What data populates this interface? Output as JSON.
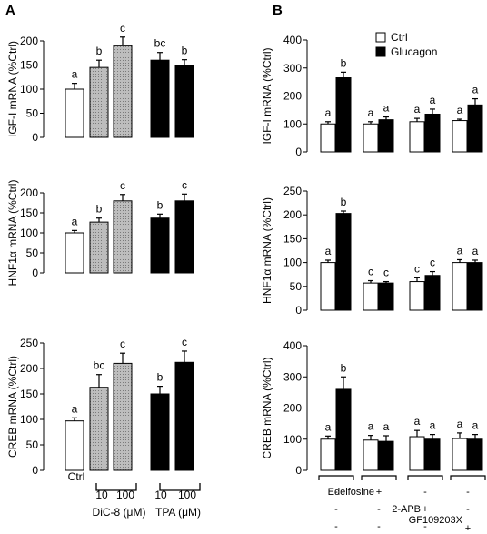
{
  "panels": {
    "A": {
      "label": "A"
    },
    "B": {
      "label": "B"
    }
  },
  "legend": {
    "items": [
      {
        "label": "Ctrl",
        "color": "#ffffff"
      },
      {
        "label": "Glucagon",
        "color": "#000000"
      }
    ],
    "placement": "top-right of panel B"
  },
  "xaxis_A": {
    "ctrl_label": "Ctrl",
    "dic8_doses": [
      "10",
      "100"
    ],
    "dic8_label": "DiC-8 (μM)",
    "tpa_doses": [
      "10",
      "100"
    ],
    "tpa_label": "TPA (μM)"
  },
  "xaxis_B": {
    "rows": [
      {
        "label": "Edelfosine",
        "signs": [
          "-",
          "+",
          "-",
          "-"
        ]
      },
      {
        "label": "2-APB",
        "signs": [
          "-",
          "-",
          "+",
          "-"
        ]
      },
      {
        "label": "GF109203X",
        "signs": [
          "-",
          "-",
          "-",
          "+"
        ]
      }
    ]
  },
  "colors": {
    "ctrl": "#ffffff",
    "dic8": "#c8c8c8",
    "black": "#000000"
  },
  "chart_data": [
    {
      "type": "bar",
      "panel": "A",
      "ylabel": "IGF-I mRNA (%Ctrl)",
      "ylim": [
        0,
        200
      ],
      "yticks": [
        0,
        50,
        100,
        150,
        200
      ],
      "categories": [
        "Ctrl",
        "DiC-8 10",
        "DiC-8 100",
        "TPA 10",
        "TPA 100"
      ],
      "values": [
        100,
        145,
        190,
        160,
        150
      ],
      "errors": [
        12,
        15,
        18,
        16,
        11
      ],
      "letters": [
        "a",
        "b",
        "c",
        "bc",
        "b"
      ]
    },
    {
      "type": "bar",
      "panel": "A",
      "ylabel": "HNF1α mRNA (%Ctrl)",
      "ylim": [
        0,
        200
      ],
      "yticks": [
        0,
        50,
        100,
        150,
        200
      ],
      "categories": [
        "Ctrl",
        "DiC-8 10",
        "DiC-8 100",
        "TPA 10",
        "TPA 100"
      ],
      "values": [
        100,
        127,
        180,
        137,
        180
      ],
      "errors": [
        6,
        10,
        16,
        10,
        17
      ],
      "letters": [
        "a",
        "b",
        "c",
        "b",
        "c"
      ]
    },
    {
      "type": "bar",
      "panel": "A",
      "ylabel": "CREB mRNA (%Ctrl)",
      "ylim": [
        0,
        250
      ],
      "yticks": [
        0,
        50,
        100,
        150,
        200,
        250
      ],
      "categories": [
        "Ctrl",
        "DiC-8 10",
        "DiC-8 100",
        "TPA 10",
        "TPA 100"
      ],
      "values": [
        97,
        163,
        210,
        150,
        212
      ],
      "errors": [
        6,
        25,
        20,
        15,
        22
      ],
      "letters": [
        "a",
        "bc",
        "c",
        "b",
        "c"
      ]
    },
    {
      "type": "bar",
      "panel": "B",
      "ylabel": "IGF-I mRNA (%Ctrl)",
      "ylim": [
        0,
        400
      ],
      "yticks": [
        0,
        100,
        200,
        300,
        400
      ],
      "categories": [
        "-",
        "Edelfosine",
        "2-APB",
        "GF109203X"
      ],
      "series": [
        {
          "name": "Ctrl",
          "values": [
            100,
            100,
            108,
            112
          ],
          "errors": [
            8,
            8,
            12,
            5
          ],
          "letters": [
            "a",
            "a",
            "a",
            "a"
          ]
        },
        {
          "name": "Glucagon",
          "values": [
            265,
            115,
            135,
            168
          ],
          "errors": [
            20,
            10,
            18,
            22
          ],
          "letters": [
            "b",
            "a",
            "a",
            "a"
          ]
        }
      ]
    },
    {
      "type": "bar",
      "panel": "B",
      "ylabel": "HNF1α mRNA (%Ctrl)",
      "ylim": [
        0,
        250
      ],
      "yticks": [
        0,
        50,
        100,
        150,
        200,
        250
      ],
      "categories": [
        "-",
        "Edelfosine",
        "2-APB",
        "GF109203X"
      ],
      "series": [
        {
          "name": "Ctrl",
          "values": [
            100,
            57,
            60,
            100
          ],
          "errors": [
            5,
            5,
            8,
            6
          ],
          "letters": [
            "a",
            "c",
            "c",
            "a"
          ]
        },
        {
          "name": "Glucagon",
          "values": [
            203,
            57,
            73,
            100
          ],
          "errors": [
            5,
            3,
            8,
            5
          ],
          "letters": [
            "b",
            "c",
            "c",
            "a"
          ]
        }
      ]
    },
    {
      "type": "bar",
      "panel": "B",
      "ylabel": "CREB mRNA (%Ctrl)",
      "ylim": [
        0,
        400
      ],
      "yticks": [
        0,
        100,
        200,
        300,
        400
      ],
      "categories": [
        "-",
        "Edelfosine",
        "2-APB",
        "GF109203X"
      ],
      "series": [
        {
          "name": "Ctrl",
          "values": [
            100,
            97,
            108,
            102
          ],
          "errors": [
            10,
            15,
            20,
            18
          ],
          "letters": [
            "a",
            "a",
            "a",
            "a"
          ]
        },
        {
          "name": "Glucagon",
          "values": [
            260,
            93,
            100,
            100
          ],
          "errors": [
            40,
            18,
            15,
            15
          ],
          "letters": [
            "b",
            "a",
            "a",
            "a"
          ]
        }
      ]
    }
  ]
}
